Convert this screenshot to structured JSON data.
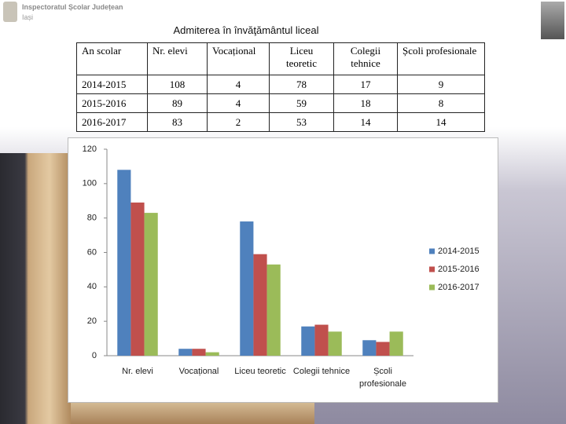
{
  "header": {
    "org": "Inspectoratul Școlar Județean",
    "city": "Iași"
  },
  "title": "Admiterea în învăţământul liceal",
  "table": {
    "columns": [
      "An scolar",
      "Nr. elevi",
      "Vocațional",
      "Liceu teoretic",
      "Colegii tehnice",
      "Școli profesionale"
    ],
    "rows": [
      [
        "2014-2015",
        108,
        4,
        78,
        17,
        9
      ],
      [
        "2015-2016",
        89,
        4,
        59,
        18,
        8
      ],
      [
        "2016-2017",
        83,
        2,
        53,
        14,
        14
      ]
    ]
  },
  "chart_data": {
    "type": "bar",
    "categories": [
      "Nr. elevi",
      "Vocațional",
      "Liceu teoretic",
      "Colegii tehnice",
      "Școli profesionale"
    ],
    "series": [
      {
        "name": "2014-2015",
        "color": "#4f81bd",
        "values": [
          108,
          4,
          78,
          17,
          9
        ]
      },
      {
        "name": "2015-2016",
        "color": "#c0504d",
        "values": [
          89,
          4,
          59,
          18,
          8
        ]
      },
      {
        "name": "2016-2017",
        "color": "#9bbb59",
        "values": [
          83,
          2,
          53,
          14,
          14
        ]
      }
    ],
    "ylim": [
      0,
      120
    ],
    "yticks": [
      0,
      20,
      40,
      60,
      80,
      100,
      120
    ],
    "legend": "right"
  }
}
